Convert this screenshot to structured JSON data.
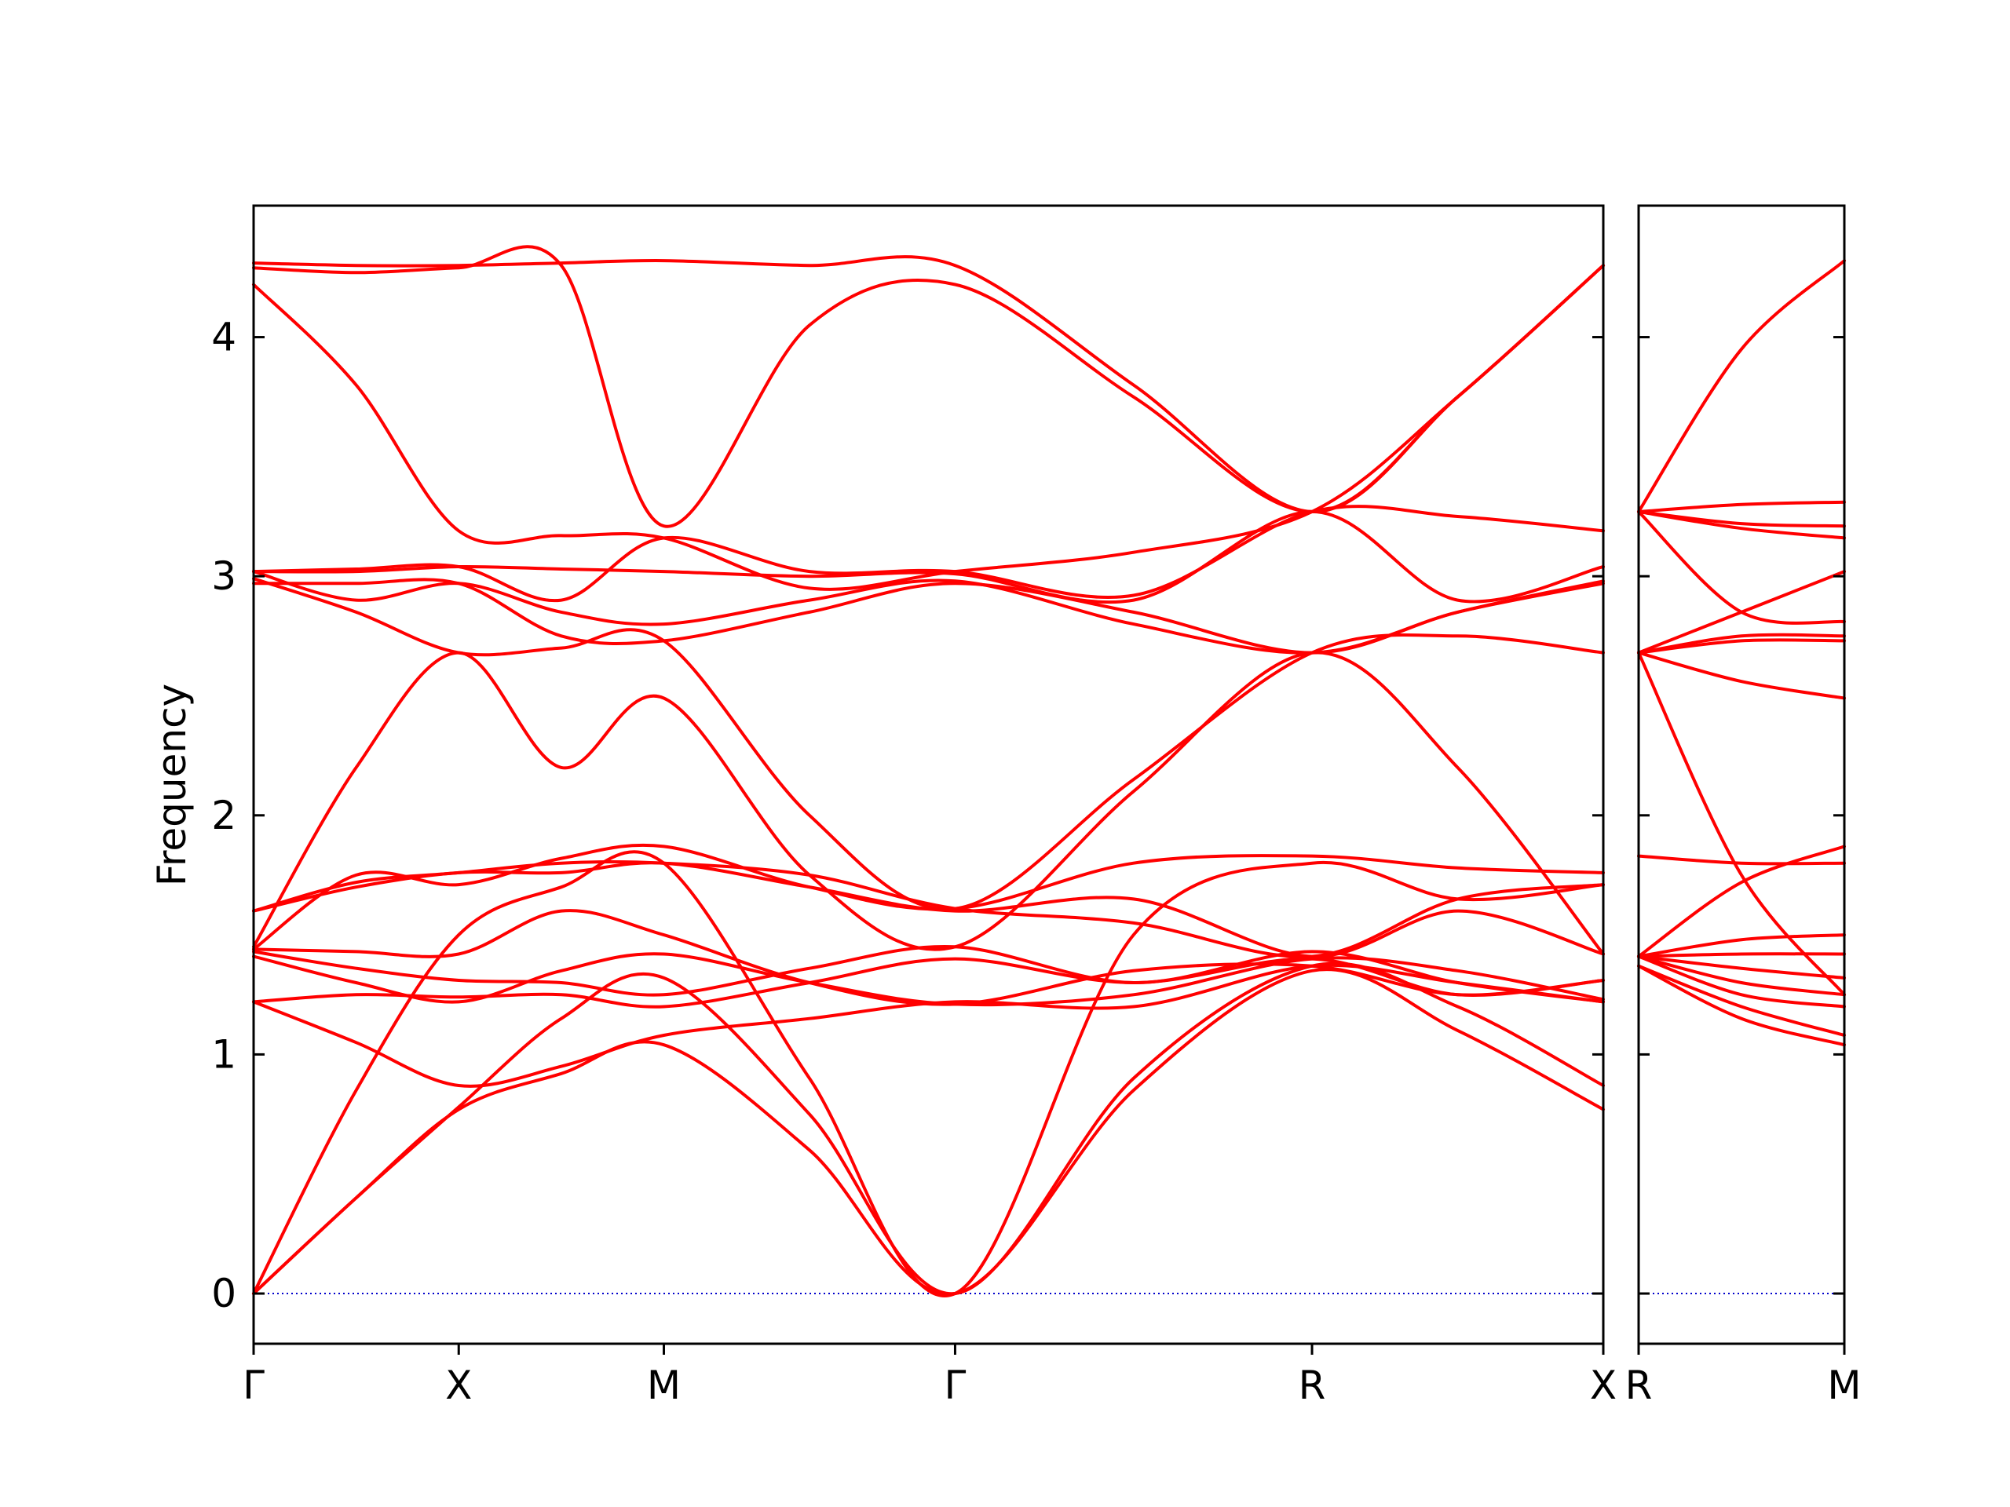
{
  "chart_data": {
    "type": "line",
    "title": "",
    "ylabel": "Frequency",
    "xlabel": "",
    "ylim": [
      -0.21,
      4.55
    ],
    "yticks": [
      0,
      1,
      2,
      3,
      4
    ],
    "line_color": "#ff0000",
    "zero_line_color": "#0000cc",
    "grid": false,
    "legend": "none",
    "panels": [
      {
        "x_range": [
          0,
          3.29
        ],
        "ticks": [
          {
            "x": 0,
            "label": "Γ"
          },
          {
            "x": 0.5,
            "label": "X"
          },
          {
            "x": 1.0,
            "label": "M"
          },
          {
            "x": 1.71,
            "label": "Γ"
          },
          {
            "x": 2.58,
            "label": "R"
          },
          {
            "x": 3.29,
            "label": "X"
          }
        ],
        "series": [
          {
            "x": [
              0,
              0.25,
              0.5,
              0.75,
              1.0,
              1.355,
              1.71,
              2.145,
              2.58,
              2.935,
              3.29
            ],
            "y": [
              0,
              0.4,
              0.77,
              0.92,
              1.04,
              0.6,
              0,
              0.85,
              1.35,
              1.1,
              0.77
            ]
          },
          {
            "x": [
              0,
              0.25,
              0.5,
              0.75,
              1.0,
              1.355,
              1.71,
              2.145,
              2.58,
              2.935,
              3.29
            ],
            "y": [
              0,
              0.4,
              0.78,
              1.15,
              1.32,
              0.75,
              0,
              0.9,
              1.37,
              1.2,
              0.87
            ]
          },
          {
            "x": [
              0,
              0.25,
              0.5,
              0.75,
              1.0,
              1.355,
              1.71,
              2.145,
              2.58,
              2.935,
              3.29
            ],
            "y": [
              0,
              0.85,
              1.5,
              1.7,
              1.8,
              0.9,
              0,
              1.5,
              1.8,
              1.65,
              1.71
            ]
          },
          {
            "x": [
              0,
              0.25,
              0.5,
              0.75,
              1.0,
              1.355,
              1.71,
              2.145,
              2.58,
              2.935,
              3.29
            ],
            "y": [
              1.22,
              1.05,
              0.87,
              0.95,
              1.08,
              1.15,
              1.22,
              1.2,
              1.37,
              1.3,
              1.22
            ]
          },
          {
            "x": [
              0,
              0.25,
              0.5,
              0.75,
              1.0,
              1.355,
              1.71,
              2.145,
              2.58,
              2.935,
              3.29
            ],
            "y": [
              1.22,
              1.25,
              1.24,
              1.25,
              1.2,
              1.3,
              1.4,
              1.3,
              1.4,
              1.25,
              1.31
            ]
          },
          {
            "x": [
              0,
              0.25,
              0.5,
              0.75,
              1.0,
              1.355,
              1.71,
              2.145,
              2.58,
              2.935,
              3.29
            ],
            "y": [
              1.41,
              1.3,
              1.22,
              1.35,
              1.42,
              1.3,
              1.21,
              1.25,
              1.4,
              1.35,
              1.23
            ]
          },
          {
            "x": [
              0,
              0.25,
              0.5,
              0.75,
              1.0,
              1.355,
              1.71,
              2.145,
              2.58,
              2.935,
              3.29
            ],
            "y": [
              1.43,
              1.36,
              1.31,
              1.3,
              1.25,
              1.36,
              1.45,
              1.3,
              1.43,
              1.3,
              1.22
            ]
          },
          {
            "x": [
              0,
              0.25,
              0.5,
              0.75,
              1.0,
              1.355,
              1.71,
              2.145,
              2.58,
              2.935,
              3.29
            ],
            "y": [
              1.44,
              1.43,
              1.42,
              1.6,
              1.5,
              1.3,
              1.21,
              1.35,
              1.37,
              1.25,
              1.31
            ]
          },
          {
            "x": [
              0,
              0.25,
              0.5,
              0.75,
              1.0,
              1.355,
              1.71,
              2.145,
              2.58,
              2.935,
              3.29
            ],
            "y": [
              1.44,
              1.75,
              1.71,
              1.82,
              1.87,
              1.7,
              1.61,
              1.8,
              1.83,
              1.78,
              1.76
            ]
          },
          {
            "x": [
              0,
              0.25,
              0.5,
              0.75,
              1.0,
              1.355,
              1.71,
              2.145,
              2.58,
              2.935,
              3.29
            ],
            "y": [
              1.6,
              1.7,
              1.76,
              1.76,
              1.8,
              1.7,
              1.6,
              1.65,
              1.41,
              1.6,
              1.42
            ]
          },
          {
            "x": [
              0,
              0.25,
              0.5,
              0.75,
              1.0,
              1.355,
              1.71,
              2.145,
              2.58,
              2.935,
              3.29
            ],
            "y": [
              1.6,
              1.72,
              1.76,
              1.8,
              1.8,
              1.75,
              1.61,
              1.55,
              1.41,
              1.65,
              1.71
            ]
          },
          {
            "x": [
              0,
              0.25,
              0.5,
              0.75,
              1.0,
              1.355,
              1.71,
              2.145,
              2.58,
              2.935,
              3.29
            ],
            "y": [
              1.45,
              2.2,
              2.68,
              2.2,
              2.49,
              1.75,
              1.45,
              2.1,
              2.68,
              2.2,
              1.42
            ]
          },
          {
            "x": [
              0,
              0.25,
              0.5,
              0.75,
              1.0,
              1.355,
              1.71,
              2.145,
              2.58,
              2.935,
              3.29
            ],
            "y": [
              2.99,
              2.85,
              2.68,
              2.7,
              2.73,
              2.0,
              1.61,
              2.15,
              2.68,
              2.75,
              2.68
            ]
          },
          {
            "x": [
              0,
              0.25,
              0.5,
              0.75,
              1.0,
              1.355,
              1.71,
              2.145,
              2.58,
              2.935,
              3.29
            ],
            "y": [
              2.97,
              2.97,
              2.97,
              2.75,
              2.73,
              2.85,
              2.97,
              2.85,
              2.68,
              2.85,
              2.97
            ]
          },
          {
            "x": [
              0,
              0.25,
              0.5,
              0.75,
              1.0,
              1.355,
              1.71,
              2.145,
              2.58,
              2.935,
              3.29
            ],
            "y": [
              3.02,
              2.9,
              2.97,
              2.85,
              2.8,
              2.9,
              2.98,
              2.8,
              2.68,
              2.85,
              2.98
            ]
          },
          {
            "x": [
              0,
              0.25,
              0.5,
              0.75,
              1.0,
              1.355,
              1.71,
              2.145,
              2.58,
              2.935,
              3.29
            ],
            "y": [
              3.02,
              3.02,
              3.04,
              3.03,
              3.02,
              3.0,
              3.01,
              2.9,
              3.27,
              2.9,
              3.04
            ]
          },
          {
            "x": [
              0,
              0.25,
              0.5,
              0.75,
              1.0,
              1.355,
              1.71,
              2.145,
              2.58,
              2.935,
              3.29
            ],
            "y": [
              3.02,
              3.03,
              3.04,
              2.9,
              3.16,
              3.02,
              3.02,
              2.92,
              3.27,
              3.25,
              3.19
            ]
          },
          {
            "x": [
              0,
              0.25,
              0.5,
              0.75,
              1.0,
              1.355,
              1.71,
              2.145,
              2.58,
              2.935,
              3.29
            ],
            "y": [
              4.22,
              3.8,
              3.19,
              3.17,
              3.16,
              2.95,
              3.02,
              3.1,
              3.27,
              3.75,
              4.3
            ]
          },
          {
            "x": [
              0,
              0.25,
              0.5,
              0.75,
              1.0,
              1.355,
              1.71,
              2.145,
              2.58,
              2.935,
              3.29
            ],
            "y": [
              4.29,
              4.27,
              4.29,
              4.3,
              3.21,
              4.05,
              4.22,
              3.75,
              3.27,
              3.75,
              4.3
            ]
          },
          {
            "x": [
              0,
              0.25,
              0.5,
              0.75,
              1.0,
              1.355,
              1.71,
              2.145,
              2.58,
              2.935,
              3.29
            ],
            "y": [
              4.31,
              4.3,
              4.3,
              4.31,
              4.32,
              4.3,
              4.3,
              3.8,
              3.27,
              3.75,
              4.3
            ]
          }
        ]
      },
      {
        "x_range": [
          0,
          0.5
        ],
        "ticks": [
          {
            "x": 0,
            "label": "R"
          },
          {
            "x": 0.5,
            "label": "M"
          }
        ],
        "series": [
          {
            "x": [
              0,
              0.25,
              0.5
            ],
            "y": [
              1.37,
              1.15,
              1.04
            ]
          },
          {
            "x": [
              0,
              0.25,
              0.5
            ],
            "y": [
              1.37,
              1.2,
              1.08
            ]
          },
          {
            "x": [
              0,
              0.25,
              0.5
            ],
            "y": [
              1.41,
              1.25,
              1.2
            ]
          },
          {
            "x": [
              0,
              0.25,
              0.5
            ],
            "y": [
              1.41,
              1.3,
              1.25
            ]
          },
          {
            "x": [
              0,
              0.25,
              0.5
            ],
            "y": [
              1.41,
              1.36,
              1.32
            ]
          },
          {
            "x": [
              0,
              0.25,
              0.5
            ],
            "y": [
              1.41,
              1.42,
              1.42
            ]
          },
          {
            "x": [
              0,
              0.25,
              0.5
            ],
            "y": [
              1.41,
              1.72,
              1.87
            ]
          },
          {
            "x": [
              0,
              0.25,
              0.5
            ],
            "y": [
              1.41,
              1.48,
              1.5
            ]
          },
          {
            "x": [
              0,
              0.25,
              0.5
            ],
            "y": [
              1.83,
              1.8,
              1.8
            ]
          },
          {
            "x": [
              0,
              0.25,
              0.5
            ],
            "y": [
              2.68,
              1.75,
              1.25
            ]
          },
          {
            "x": [
              0,
              0.25,
              0.5
            ],
            "y": [
              2.68,
              2.56,
              2.49
            ]
          },
          {
            "x": [
              0,
              0.25,
              0.5
            ],
            "y": [
              2.68,
              2.73,
              2.73
            ]
          },
          {
            "x": [
              0,
              0.25,
              0.5
            ],
            "y": [
              2.68,
              2.75,
              2.75
            ]
          },
          {
            "x": [
              0,
              0.25,
              0.5
            ],
            "y": [
              2.68,
              2.85,
              3.02
            ]
          },
          {
            "x": [
              0,
              0.25,
              0.5
            ],
            "y": [
              3.27,
              2.85,
              2.81
            ]
          },
          {
            "x": [
              0,
              0.25,
              0.5
            ],
            "y": [
              3.27,
              3.2,
              3.16
            ]
          },
          {
            "x": [
              0,
              0.25,
              0.5
            ],
            "y": [
              3.27,
              3.22,
              3.21
            ]
          },
          {
            "x": [
              0,
              0.25,
              0.5
            ],
            "y": [
              3.27,
              3.3,
              3.31
            ]
          },
          {
            "x": [
              0,
              0.25,
              0.5
            ],
            "y": [
              3.27,
              3.95,
              4.32
            ]
          }
        ]
      }
    ]
  }
}
